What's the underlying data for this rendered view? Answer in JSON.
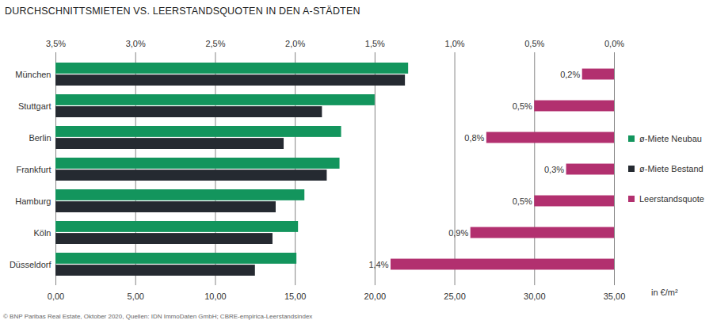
{
  "chart_data": {
    "type": "bar",
    "orientation": "horizontal",
    "title": "DURCHSCHNITTSMIETEN VS. LEERSTANDSQUOTEN IN DEN A-STÄDTEN",
    "caption": "© BNP Paribas Real Estate, Oktober 2020, Quellen: IDN ImmoDaten GmbH; CBRE-empirica-Leerstandsindex",
    "categories": [
      "München",
      "Stuttgart",
      "Berlin",
      "Frankfurt",
      "Hamburg",
      "Köln",
      "Düsseldorf"
    ],
    "x_label": "in €/m²",
    "xlim": [
      0,
      35
    ],
    "xticks": [
      {
        "value": 0,
        "label": "0,00"
      },
      {
        "value": 5,
        "label": "5,00"
      },
      {
        "value": 10,
        "label": "10,00"
      },
      {
        "value": 15,
        "label": "15,00"
      },
      {
        "value": 20,
        "label": "20,00"
      },
      {
        "value": 25,
        "label": "25,00"
      },
      {
        "value": 30,
        "label": "30,00"
      },
      {
        "value": 35,
        "label": "35,00"
      }
    ],
    "x2lim": [
      3.5,
      0
    ],
    "x2ticks": [
      {
        "value": 3.5,
        "label": "3,5%"
      },
      {
        "value": 3,
        "label": "3,0%"
      },
      {
        "value": 2.5,
        "label": "2,5%"
      },
      {
        "value": 2,
        "label": "2,0%"
      },
      {
        "value": 1.5,
        "label": "1,5%"
      },
      {
        "value": 1,
        "label": "1,0%"
      },
      {
        "value": 0.5,
        "label": "0,5%"
      },
      {
        "value": 0,
        "label": "0,0%"
      }
    ],
    "grid": true,
    "legend": "right",
    "series": [
      {
        "name": "ø-Miete Neubau",
        "color": "#13955d",
        "values": [
          22.1,
          20.0,
          17.9,
          17.8,
          15.6,
          15.2,
          15.1
        ]
      },
      {
        "name": "ø-Miete Bestand",
        "color": "#252a31",
        "values": [
          21.9,
          16.7,
          14.3,
          17.0,
          13.8,
          13.6,
          12.5
        ]
      },
      {
        "name": "Leerstandsquote",
        "color": "#b2306f",
        "axis": "x2",
        "data_labels": true,
        "values": [
          0.2,
          0.5,
          0.8,
          0.3,
          0.5,
          0.9,
          1.4
        ],
        "value_labels": [
          "0,2%",
          "0,5%",
          "0,8%",
          "0,3%",
          "0,5%",
          "0,9%",
          "1,4%"
        ]
      }
    ]
  }
}
